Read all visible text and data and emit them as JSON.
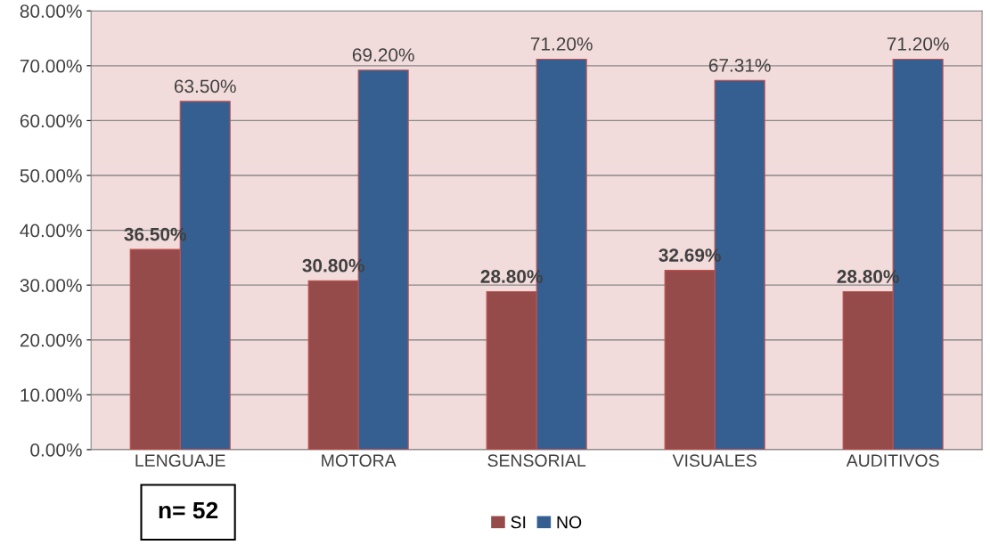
{
  "chart_data": {
    "type": "bar",
    "categories": [
      "LENGUAJE",
      "MOTORA",
      "SENSORIAL",
      "VISUALES",
      "AUDITIVOS"
    ],
    "series": [
      {
        "name": "SI",
        "color": "#954b4a",
        "values": [
          36.5,
          30.8,
          28.8,
          32.69,
          28.8
        ],
        "value_labels": [
          "36.50%",
          "30.80%",
          "28.80%",
          "32.69%",
          "28.80%"
        ]
      },
      {
        "name": "NO",
        "color": "#365f91",
        "values": [
          63.5,
          69.2,
          71.2,
          67.31,
          71.2
        ],
        "value_labels": [
          "63.50%",
          "69.20%",
          "71.20%",
          "67.31%",
          "71.20%"
        ]
      }
    ],
    "ylim": [
      0,
      80
    ],
    "yticks": [
      {
        "value": 0,
        "label": "0.00%"
      },
      {
        "value": 10,
        "label": "10.00%"
      },
      {
        "value": 20,
        "label": "20.00%"
      },
      {
        "value": 30,
        "label": "30.00%"
      },
      {
        "value": 40,
        "label": "40.00%"
      },
      {
        "value": 50,
        "label": "50.00%"
      },
      {
        "value": 60,
        "label": "60.00%"
      },
      {
        "value": 70,
        "label": "70.00%"
      },
      {
        "value": 80,
        "label": "80.00%"
      }
    ],
    "grid": "y",
    "legend": "bottom",
    "annotations": [
      "n= 52"
    ]
  }
}
